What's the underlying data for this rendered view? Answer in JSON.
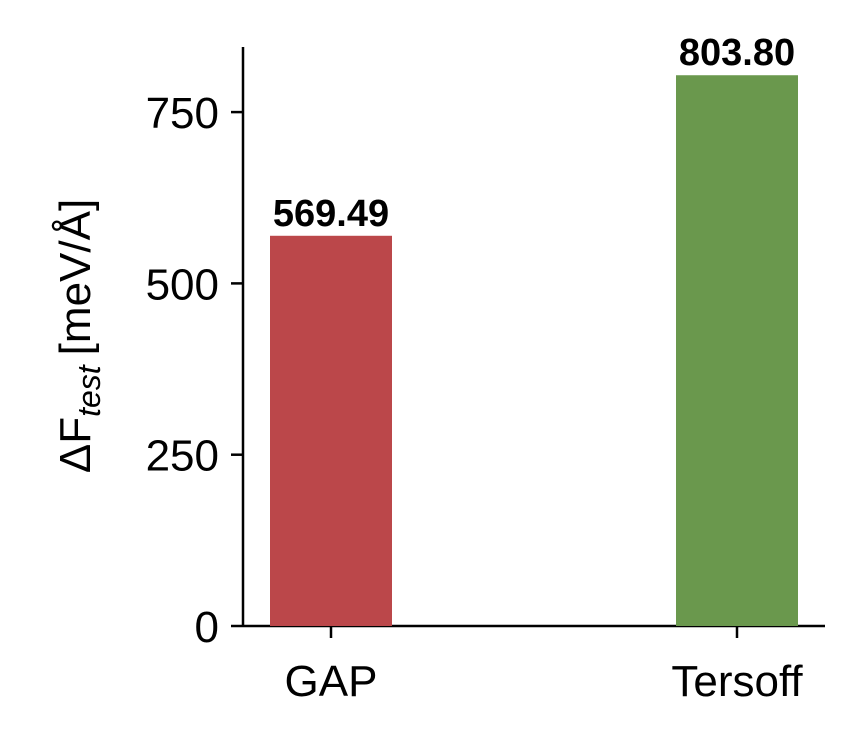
{
  "chart_data": {
    "type": "bar",
    "ylabel_base": "ΔF",
    "ylabel_subscript": "test",
    "ylabel_unit": "[meV/Å]",
    "categories": [
      "GAP",
      "Tersoff"
    ],
    "values": [
      569.49,
      803.8
    ],
    "value_labels": [
      "569.49",
      "803.80"
    ],
    "colors": [
      "#bb474a",
      "#6a984d"
    ],
    "ylim": [
      0,
      845
    ],
    "yticks": [
      0,
      250,
      500,
      750
    ],
    "grid": false
  }
}
